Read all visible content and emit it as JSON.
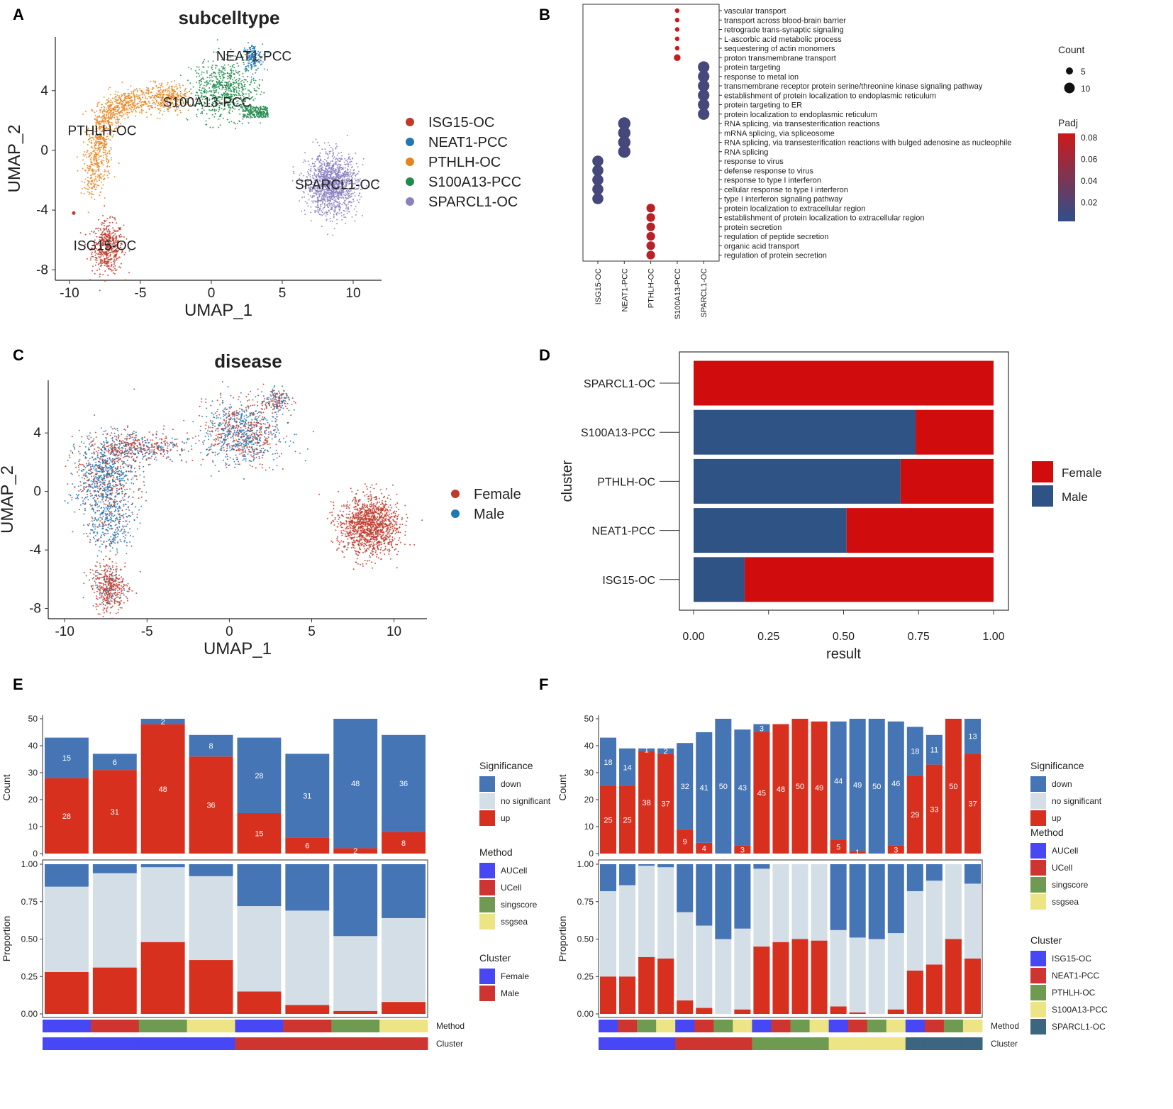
{
  "panel_labels": [
    "A",
    "B",
    "C",
    "D",
    "E",
    "F"
  ],
  "colors": {
    "isg15": "#c0392b",
    "neat1": "#1f78b4",
    "pthlh": "#e6851e",
    "s100": "#1e8b4b",
    "sparcl1": "#8b80c0",
    "female": "#c0392b",
    "male": "#1f78b4",
    "bar_female": "#d10c0c",
    "bar_male": "#2e5384",
    "sig_down": "#4575b4",
    "sig_ns": "#d3dee6",
    "sig_up": "#d7301f",
    "auc": "#4747f5",
    "ucell": "#cf3530",
    "sing": "#6f9a52",
    "ssg": "#ece485",
    "sparcl_track": "#3c6580",
    "padj_high": "#cc1a1a",
    "padj_low": "#2f4f8a"
  },
  "chart_data": [
    {
      "id": "A",
      "type": "scatter",
      "title": "subcelltype",
      "xlabel": "UMAP_1",
      "ylabel": "UMAP_2",
      "xlim": [
        -11,
        12
      ],
      "ylim": [
        -8.7,
        7.6
      ],
      "xticks": [
        -10,
        -5,
        0,
        5,
        10
      ],
      "yticks": [
        -8,
        -4,
        0,
        4
      ],
      "legend": [
        "ISG15-OC",
        "NEAT1-PCC",
        "PTHLH-OC",
        "S100A13-PCC",
        "SPARCL1-OC"
      ],
      "annotations": [
        {
          "text": "NEAT1-PCC",
          "x": 3,
          "y": 6.3
        },
        {
          "text": "S100A13-PCC",
          "x": -0.3,
          "y": 3.2
        },
        {
          "text": "PTHLH-OC",
          "x": -7.7,
          "y": 1.3
        },
        {
          "text": "SPARCL1-OC",
          "x": 8.9,
          "y": -2.3
        },
        {
          "text": "ISG15-OC",
          "x": -7.5,
          "y": -6.4
        }
      ],
      "clusters": [
        {
          "name": "ISG15-OC",
          "cx": -7.3,
          "cy": -6.5,
          "sx": 0.55,
          "sy": 0.85,
          "n": 500
        },
        {
          "name": "NEAT1-PCC",
          "cx": 2.9,
          "cy": 6.2,
          "sx": 0.35,
          "sy": 0.45,
          "n": 180
        },
        {
          "name": "PTHLH-OC",
          "cx": -7.7,
          "cy": 0.5,
          "sx": 0.8,
          "sy": 1.7,
          "n": 1300
        },
        {
          "name": "S100A13-PCC",
          "cx": 0.9,
          "cy": 4.1,
          "sx": 1.1,
          "sy": 1.0,
          "n": 900
        },
        {
          "name": "SPARCL1-OC",
          "cx": 8.5,
          "cy": -2.3,
          "sx": 0.9,
          "sy": 1.0,
          "n": 1300
        }
      ]
    },
    {
      "id": "B",
      "type": "scatter",
      "terms": [
        "vascular transport",
        "transport across blood-brain barrier",
        "retrograde trans-synaptic signaling",
        "L-ascorbic acid metabolic process",
        "sequestering of actin monomers",
        "proton transmembrane transport",
        "protein targeting",
        "response to metal ion",
        "transmembrane receptor protein serine/threonine kinase signaling pathway",
        "establishment of protein localization to endoplasmic reticulum",
        "protein targeting to ER",
        "protein localization to endoplasmic reticulum",
        "RNA splicing, via transesterification reactions",
        "mRNA splicing, via spliceosome",
        "RNA splicing, via transesterification reactions with bulged adenosine as nucleophile",
        "RNA splicing",
        "response to virus",
        "defense response to virus",
        "response to type I interferon",
        "cellular response to type I interferon",
        "type I interferon signaling pathway",
        "protein localization to extracellular region",
        "establishment of protein localization to extracellular region",
        "protein secretion",
        "regulation of peptide secretion",
        "organic acid transport",
        "regulation of protein secretion"
      ],
      "groups": [
        "ISG15-OC",
        "NEAT1-PCC",
        "PTHLH-OC",
        "S100A13-PCC",
        "SPARCL1-OC"
      ],
      "points": [
        [
          3,
          0,
          1,
          0.085
        ],
        [
          3,
          1,
          1,
          0.085
        ],
        [
          3,
          2,
          1,
          0.085
        ],
        [
          3,
          3,
          1,
          0.085
        ],
        [
          3,
          4,
          1,
          0.085
        ],
        [
          3,
          5,
          3,
          0.08
        ],
        [
          4,
          6,
          12,
          0.012
        ],
        [
          4,
          7,
          12,
          0.012
        ],
        [
          4,
          8,
          12,
          0.012
        ],
        [
          4,
          9,
          12,
          0.012
        ],
        [
          4,
          10,
          12,
          0.012
        ],
        [
          4,
          11,
          12,
          0.012
        ],
        [
          1,
          12,
          14,
          0.012
        ],
        [
          1,
          13,
          14,
          0.012
        ],
        [
          1,
          14,
          14,
          0.012
        ],
        [
          1,
          15,
          14,
          0.012
        ],
        [
          0,
          16,
          11,
          0.012
        ],
        [
          0,
          17,
          11,
          0.012
        ],
        [
          0,
          18,
          11,
          0.012
        ],
        [
          0,
          19,
          11,
          0.012
        ],
        [
          0,
          20,
          11,
          0.012
        ],
        [
          2,
          21,
          6,
          0.075
        ],
        [
          2,
          22,
          6,
          0.075
        ],
        [
          2,
          23,
          6,
          0.072
        ],
        [
          2,
          24,
          6,
          0.075
        ],
        [
          2,
          25,
          6,
          0.072
        ],
        [
          2,
          26,
          6,
          0.075
        ]
      ],
      "legend_count_title": "Count",
      "legend_count": [
        "5",
        "10"
      ],
      "legend_padj_title": "Padj",
      "legend_padj": [
        "0.08",
        "0.06",
        "0.04",
        "0.02"
      ]
    },
    {
      "id": "C",
      "type": "scatter",
      "title": "disease",
      "xlabel": "UMAP_1",
      "ylabel": "UMAP_2",
      "xlim": [
        -11,
        12
      ],
      "ylim": [
        -8.7,
        7.6
      ],
      "xticks": [
        -10,
        -5,
        0,
        5,
        10
      ],
      "yticks": [
        -8,
        -4,
        0,
        4
      ],
      "legend": [
        "Female",
        "Male"
      ]
    },
    {
      "id": "D",
      "type": "bar",
      "orientation": "horizontal",
      "stacked": true,
      "categories": [
        "SPARCL1-OC",
        "S100A13-PCC",
        "PTHLH-OC",
        "NEAT1-PCC",
        "ISG15-OC"
      ],
      "series": [
        {
          "name": "Male",
          "values": [
            0.0,
            0.74,
            0.69,
            0.51,
            0.17
          ]
        },
        {
          "name": "Female",
          "values": [
            1.0,
            0.26,
            0.31,
            0.49,
            0.83
          ]
        }
      ],
      "xlabel": "result",
      "ylabel": "cluster",
      "xticks": [
        "0.00",
        "0.25",
        "0.50",
        "0.75",
        "1.00"
      ],
      "legend": [
        "Female",
        "Male"
      ]
    },
    {
      "id": "E",
      "type": "bar",
      "stacked": true,
      "count_ticks": [
        "0",
        "10",
        "20",
        "30",
        "40",
        "50"
      ],
      "prop_ticks": [
        "0.00",
        "0.25",
        "0.50",
        "0.75",
        "1.00"
      ],
      "count_label": "Count",
      "prop_label": "Proportion",
      "up": [
        28,
        31,
        48,
        36,
        15,
        6,
        2,
        8
      ],
      "down": [
        15,
        6,
        2,
        8,
        28,
        31,
        48,
        36
      ],
      "total": [
        43,
        37,
        50,
        44,
        43,
        37,
        50,
        44
      ],
      "method": [
        "AUCell",
        "UCell",
        "singscore",
        "ssgsea",
        "AUCell",
        "UCell",
        "singscore",
        "ssgsea"
      ],
      "cluster": [
        "Female",
        "Female",
        "Female",
        "Female",
        "Male",
        "Male",
        "Male",
        "Male"
      ],
      "up_labels": [
        "28",
        "31",
        "48",
        "36",
        "15",
        "6",
        "2",
        "8"
      ],
      "down_labels": [
        "15",
        "6",
        "2",
        "8",
        "28",
        "31",
        "48",
        "36"
      ],
      "track_method_label": "Method",
      "track_cluster_label": "Cluster",
      "legend_sig_title": "Significance",
      "legend_sig": [
        "down",
        "no significant",
        "up"
      ],
      "legend_method_title": "Method",
      "legend_method": [
        "AUCell",
        "UCell",
        "singscore",
        "ssgsea"
      ],
      "legend_cluster_title": "Cluster",
      "legend_cluster": [
        "Female",
        "Male"
      ]
    },
    {
      "id": "F",
      "type": "bar",
      "stacked": true,
      "count_ticks": [
        "0",
        "10",
        "20",
        "30",
        "40",
        "50"
      ],
      "prop_ticks": [
        "0.00",
        "0.25",
        "0.50",
        "0.75",
        "1.00"
      ],
      "count_label": "Count",
      "prop_label": "Proportion",
      "up": [
        25,
        25,
        38,
        37,
        9,
        4,
        0,
        3,
        45,
        48,
        50,
        49,
        5,
        1,
        0,
        3,
        29,
        33,
        50,
        37
      ],
      "down": [
        18,
        14,
        1,
        2,
        32,
        41,
        50,
        43,
        3,
        0,
        0,
        0,
        44,
        49,
        50,
        46,
        18,
        11,
        0,
        13
      ],
      "total": [
        43,
        39,
        39,
        39,
        41,
        45,
        50,
        46,
        48,
        48,
        50,
        49,
        49,
        50,
        50,
        49,
        47,
        44,
        50,
        50
      ],
      "method": [
        "AUCell",
        "UCell",
        "singscore",
        "ssgsea",
        "AUCell",
        "UCell",
        "singscore",
        "ssgsea",
        "AUCell",
        "UCell",
        "singscore",
        "ssgsea",
        "AUCell",
        "UCell",
        "singscore",
        "ssgsea",
        "AUCell",
        "UCell",
        "singscore",
        "ssgsea"
      ],
      "cluster": [
        "ISG15-OC",
        "ISG15-OC",
        "ISG15-OC",
        "ISG15-OC",
        "NEAT1-PCC",
        "NEAT1-PCC",
        "NEAT1-PCC",
        "NEAT1-PCC",
        "PTHLH-OC",
        "PTHLH-OC",
        "PTHLH-OC",
        "PTHLH-OC",
        "S100A13-PCC",
        "S100A13-PCC",
        "S100A13-PCC",
        "S100A13-PCC",
        "SPARCL1-OC",
        "SPARCL1-OC",
        "SPARCL1-OC",
        "SPARCL1-OC"
      ],
      "up_labels": [
        "25",
        "25",
        "38",
        "37",
        "9",
        "4",
        "",
        "3",
        "45",
        "48",
        "50",
        "49",
        "5",
        "1",
        "",
        "3",
        "29",
        "33",
        "50",
        "37"
      ],
      "down_labels": [
        "18",
        "14",
        "1",
        "2",
        "32",
        "41",
        "50",
        "43",
        "3",
        "",
        "",
        "",
        "44",
        "49",
        "50",
        "46",
        "18",
        "11",
        "",
        "13"
      ],
      "track_method_label": "Method",
      "track_cluster_label": "Cluster",
      "legend_sig_title": "Significance",
      "legend_sig": [
        "down",
        "no significant",
        "up"
      ],
      "legend_method_title": "Method",
      "legend_method": [
        "AUCell",
        "UCell",
        "singscore",
        "ssgsea"
      ],
      "legend_cluster_title": "Cluster",
      "legend_cluster": [
        "ISG15-OC",
        "NEAT1-PCC",
        "PTHLH-OC",
        "S100A13-PCC",
        "SPARCL1-OC"
      ]
    }
  ]
}
